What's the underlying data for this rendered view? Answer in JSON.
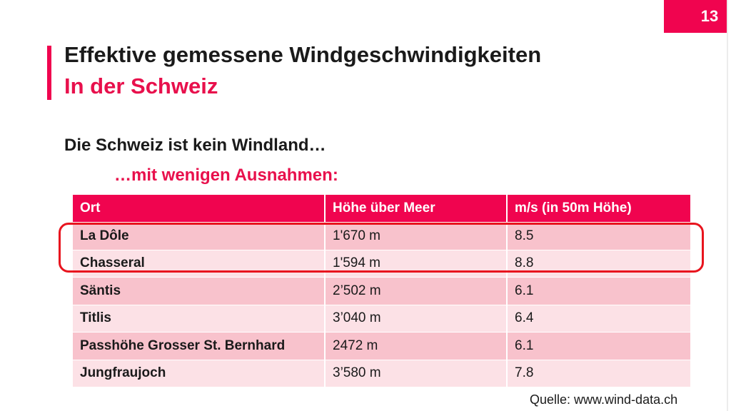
{
  "slide": {
    "page_number": "13",
    "title": "Effektive gemessene Windgeschwindigkeiten",
    "subtitle": "In der Schweiz",
    "lead": "Die Schweiz ist kein Windland…",
    "lead_sub": "…mit wenigen Ausnahmen:",
    "source": "Quelle: www.wind-data.ch"
  },
  "colors": {
    "accent": "#f0044f",
    "row_odd": "#f8c2cc",
    "row_even": "#fce1e6",
    "highlight": "#e8141e"
  },
  "table": {
    "headers": [
      "Ort",
      "Höhe über Meer",
      "m/s (in 50m Höhe)"
    ],
    "rows": [
      [
        "La Dôle",
        "1'670 m",
        "8.5"
      ],
      [
        "Chasseral",
        "1'594 m",
        "8.8"
      ],
      [
        "Säntis",
        "2’502 m",
        "6.1"
      ],
      [
        "Titlis",
        "3’040 m",
        "6.4"
      ],
      [
        "Passhöhe Grosser St. Bernhard",
        "2472 m",
        "6.1"
      ],
      [
        "Jungfraujoch",
        "3’580 m",
        "7.8"
      ]
    ],
    "highlighted_rows": [
      0,
      1
    ]
  }
}
